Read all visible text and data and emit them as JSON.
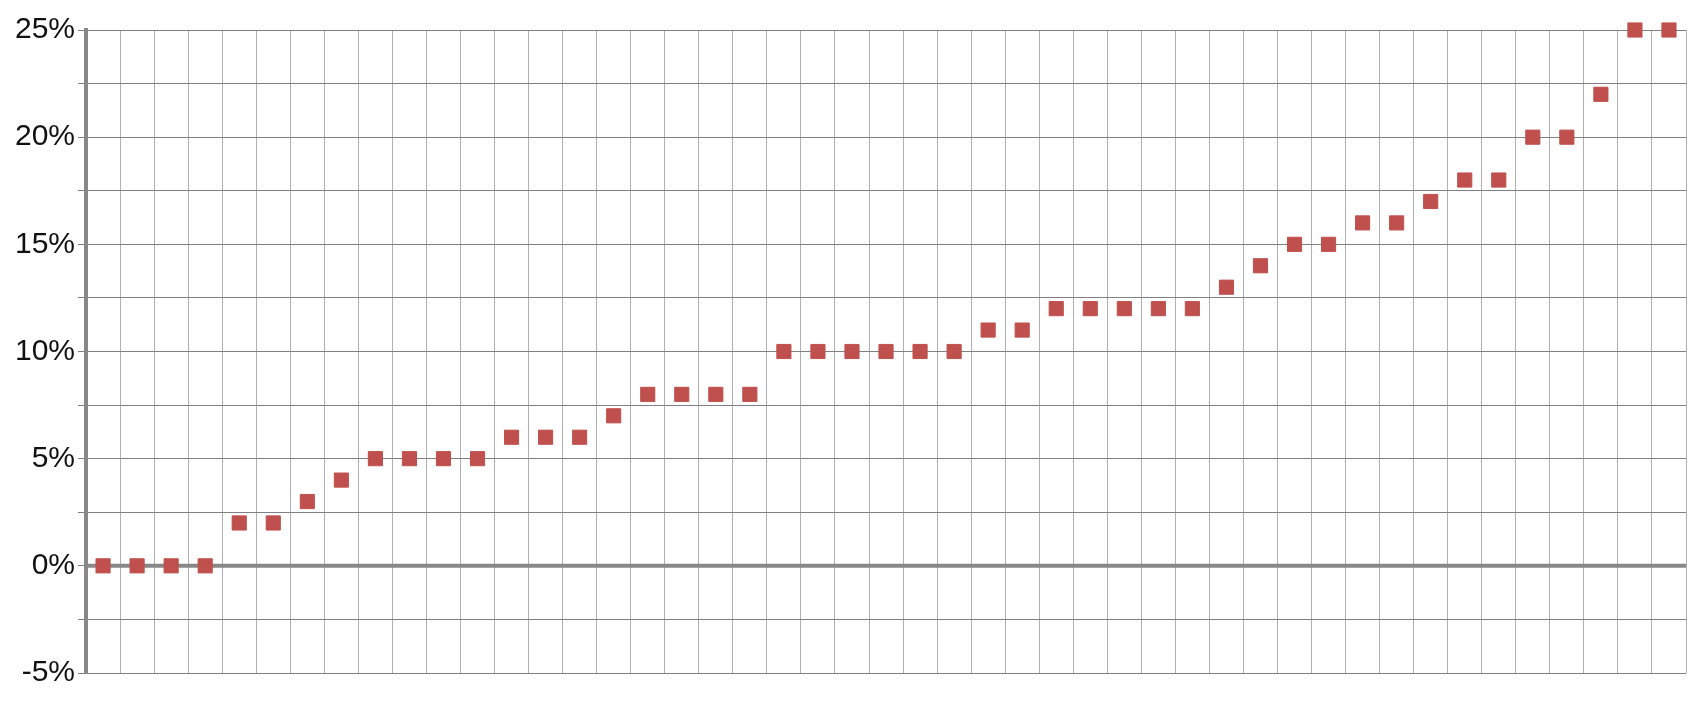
{
  "chart_data": {
    "type": "scatter",
    "marker": "square",
    "grid": true,
    "tick_labels": "y",
    "ylim": [
      -5,
      25
    ],
    "categories": [
      null,
      null,
      null,
      null,
      null,
      null,
      null,
      null,
      null,
      null,
      null,
      null,
      null,
      null,
      null,
      null,
      null,
      null,
      null,
      null,
      null,
      null,
      null,
      null,
      null,
      null,
      null,
      null,
      null,
      null,
      null,
      null,
      null,
      null,
      null,
      null,
      null,
      null,
      null,
      null,
      null,
      null,
      null,
      null,
      null,
      null,
      null
    ],
    "series": [
      {
        "color": "#c0504d",
        "values": [
          0,
          0,
          0,
          0,
          2,
          2,
          3,
          4,
          5,
          5,
          5,
          5,
          6,
          6,
          6,
          7,
          8,
          8,
          8,
          8,
          10,
          10,
          10,
          10,
          10,
          10,
          11,
          11,
          12,
          12,
          12,
          12,
          12,
          13,
          14,
          15,
          15,
          16,
          16,
          17,
          18,
          18,
          20,
          20,
          22,
          25,
          25
        ]
      }
    ],
    "yticks": [
      {
        "value": -5,
        "label": "-5%"
      },
      {
        "value": -2.5,
        "label": null
      },
      {
        "value": 0,
        "label": "0%"
      },
      {
        "value": 2.5,
        "label": null
      },
      {
        "value": 5,
        "label": "5%"
      },
      {
        "value": 7.5,
        "label": null
      },
      {
        "value": 10,
        "label": "10%"
      },
      {
        "value": 12.5,
        "label": null
      },
      {
        "value": 15,
        "label": "15%"
      },
      {
        "value": 17.5,
        "label": null
      },
      {
        "value": 20,
        "label": "20%"
      },
      {
        "value": 22.5,
        "label": null
      },
      {
        "value": 25,
        "label": "25%"
      }
    ]
  }
}
